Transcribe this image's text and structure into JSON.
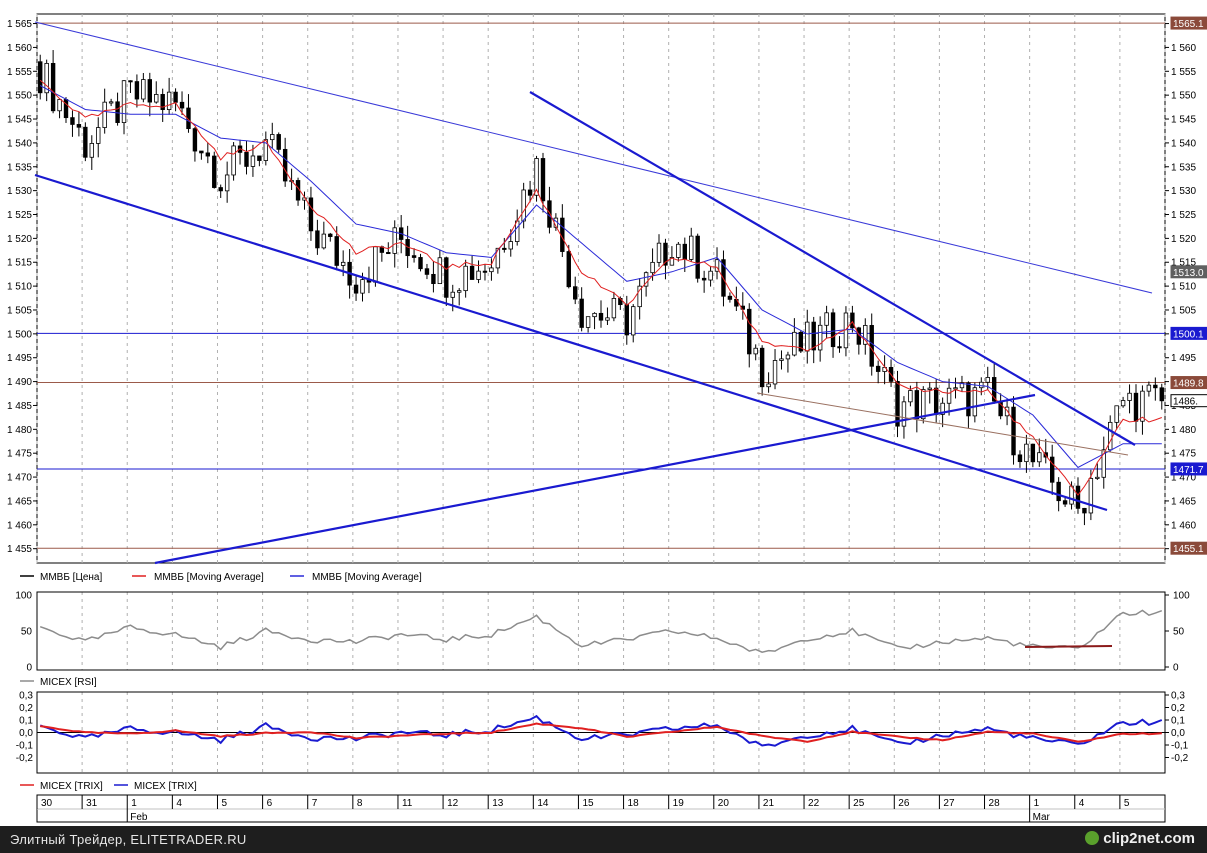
{
  "colors": {
    "candle": "#000000",
    "ma_fast": "#e02020",
    "ma_slow": "#2a2ad8",
    "trendline": "#1a1ad0",
    "channel_top": "#3a3ad8",
    "level_brown": "#9b5a4a",
    "level_blue": "#1a1ad0",
    "rsi": "#8c8c8c",
    "rsi_marker": "#8b1a1a",
    "trix_red": "#e02020",
    "trix_blue": "#1a1ad0",
    "grid": "#b0b0b0"
  },
  "price_axis": {
    "ticks": [
      "1 455",
      "1 460",
      "1 465",
      "1 470",
      "1 475",
      "1 480",
      "1 485",
      "1 490",
      "1 495",
      "1 500",
      "1 505",
      "1 510",
      "1 515",
      "1 520",
      "1 525",
      "1 530",
      "1 535",
      "1 540",
      "1 545",
      "1 550",
      "1 555",
      "1 560",
      "1 565"
    ]
  },
  "level_tags": [
    {
      "price": 1565.1,
      "label": "1565.1",
      "style": "brown"
    },
    {
      "price": 1513.0,
      "label": "1513.0",
      "style": "gray"
    },
    {
      "price": 1500.1,
      "label": "1500.1",
      "style": "blue"
    },
    {
      "price": 1489.8,
      "label": "1489.8",
      "style": "brown"
    },
    {
      "price": 1486.0,
      "label": "1486.",
      "style": "white"
    },
    {
      "price": 1471.7,
      "label": "1471.7",
      "style": "blue"
    },
    {
      "price": 1455.1,
      "label": "1455.1",
      "style": "brown"
    }
  ],
  "legend_main": {
    "price": "ММВБ [Цена]",
    "ma1": "ММВБ [Moving Average]",
    "ma2": "ММВБ [Moving Average]"
  },
  "rsi_panel": {
    "ticks": [
      "0",
      "50",
      "100"
    ],
    "legend": "MICEX [RSI]"
  },
  "trix_panel": {
    "ticks": [
      "-0,2",
      "-0,1",
      "0,0",
      "0,1",
      "0,2",
      "0,3"
    ],
    "legend1": "MICEX [TRIX]",
    "legend2": "MICEX [TRIX]"
  },
  "date_axis": {
    "days": [
      "30",
      "31",
      "1",
      "4",
      "5",
      "6",
      "7",
      "8",
      "11",
      "12",
      "13",
      "14",
      "15",
      "18",
      "19",
      "20",
      "21",
      "22",
      "25",
      "26",
      "27",
      "28",
      "1",
      "4",
      "5"
    ],
    "months": [
      {
        "label": "Feb",
        "at_day_index": 2
      },
      {
        "label": "Mar",
        "at_day_index": 22
      }
    ]
  },
  "footer": {
    "caption": "Элитный Трейдер, ELITETRADER.RU",
    "brand": "clip2net.com"
  },
  "chart_data": {
    "type": "line",
    "title": "",
    "series": [
      {
        "name": "ММВБ [Цена]",
        "kind": "daily close (candles)",
        "points": [
          [
            "30",
            1555
          ],
          [
            "31",
            1540
          ],
          [
            "1",
            1550
          ],
          [
            "4",
            1548
          ],
          [
            "5",
            1533
          ],
          [
            "6",
            1540
          ],
          [
            "7",
            1522
          ],
          [
            "8",
            1512
          ],
          [
            "11",
            1520
          ],
          [
            "12",
            1512
          ],
          [
            "13",
            1515
          ],
          [
            "14",
            1535
          ],
          [
            "15",
            1505
          ],
          [
            "18",
            1503
          ],
          [
            "19",
            1520
          ],
          [
            "20",
            1512
          ],
          [
            "21",
            1493
          ],
          [
            "22",
            1498
          ],
          [
            "25",
            1503
          ],
          [
            "26",
            1485
          ],
          [
            "27",
            1486
          ],
          [
            "28",
            1487
          ],
          [
            "1",
            1473
          ],
          [
            "4",
            1463
          ],
          [
            "5",
            1486
          ]
        ]
      },
      {
        "name": "ММВБ [Moving Average]",
        "points": [
          [
            "30",
            1553
          ],
          [
            "31",
            1545
          ],
          [
            "1",
            1548
          ],
          [
            "4",
            1548
          ],
          [
            "5",
            1537
          ],
          [
            "6",
            1540
          ],
          [
            "7",
            1527
          ],
          [
            "8",
            1517
          ],
          [
            "11",
            1519
          ],
          [
            "12",
            1514
          ],
          [
            "13",
            1515
          ],
          [
            "14",
            1530
          ],
          [
            "15",
            1513
          ],
          [
            "18",
            1506
          ],
          [
            "19",
            1516
          ],
          [
            "20",
            1514
          ],
          [
            "21",
            1498
          ],
          [
            "22",
            1497
          ],
          [
            "25",
            1502
          ],
          [
            "26",
            1489
          ],
          [
            "27",
            1488
          ],
          [
            "28",
            1488
          ],
          [
            "1",
            1478
          ],
          [
            "4",
            1466
          ],
          [
            "5",
            1482
          ]
        ]
      },
      {
        "name": "ММВБ [Moving Average]",
        "points": [
          [
            "30",
            1552
          ],
          [
            "31",
            1547
          ],
          [
            "1",
            1546
          ],
          [
            "4",
            1546
          ],
          [
            "5",
            1541
          ],
          [
            "6",
            1540
          ],
          [
            "7",
            1532
          ],
          [
            "8",
            1523
          ],
          [
            "11",
            1521
          ],
          [
            "12",
            1517
          ],
          [
            "13",
            1516
          ],
          [
            "14",
            1527
          ],
          [
            "15",
            1519
          ],
          [
            "18",
            1511
          ],
          [
            "19",
            1513
          ],
          [
            "20",
            1516
          ],
          [
            "21",
            1505
          ],
          [
            "22",
            1500
          ],
          [
            "25",
            1501
          ],
          [
            "26",
            1494
          ],
          [
            "27",
            1490
          ],
          [
            "28",
            1489
          ],
          [
            "1",
            1483
          ],
          [
            "4",
            1472
          ],
          [
            "5",
            1477
          ]
        ]
      },
      {
        "name": "MICEX [RSI]",
        "points": [
          [
            "30",
            55
          ],
          [
            "31",
            35
          ],
          [
            "1",
            55
          ],
          [
            "4",
            45
          ],
          [
            "5",
            28
          ],
          [
            "6",
            50
          ],
          [
            "7",
            38
          ],
          [
            "8",
            35
          ],
          [
            "11",
            45
          ],
          [
            "12",
            38
          ],
          [
            "13",
            45
          ],
          [
            "14",
            70
          ],
          [
            "15",
            30
          ],
          [
            "18",
            38
          ],
          [
            "19",
            50
          ],
          [
            "20",
            40
          ],
          [
            "21",
            18
          ],
          [
            "22",
            40
          ],
          [
            "25",
            50
          ],
          [
            "26",
            25
          ],
          [
            "27",
            35
          ],
          [
            "28",
            40
          ],
          [
            "1",
            28
          ],
          [
            "4",
            25
          ],
          [
            "5",
            75
          ]
        ]
      },
      {
        "name": "MICEX [TRIX]",
        "points": [
          [
            "30",
            0.05
          ],
          [
            "31",
            -0.05
          ],
          [
            "1",
            0.03
          ],
          [
            "4",
            0.0
          ],
          [
            "5",
            -0.06
          ],
          [
            "6",
            0.05
          ],
          [
            "7",
            -0.04
          ],
          [
            "8",
            -0.05
          ],
          [
            "11",
            0.0
          ],
          [
            "12",
            -0.02
          ],
          [
            "13",
            0.02
          ],
          [
            "14",
            0.12
          ],
          [
            "15",
            -0.05
          ],
          [
            "18",
            -0.02
          ],
          [
            "19",
            0.03
          ],
          [
            "20",
            0.06
          ],
          [
            "21",
            -0.12
          ],
          [
            "22",
            -0.02
          ],
          [
            "25",
            0.03
          ],
          [
            "26",
            -0.1
          ],
          [
            "27",
            -0.02
          ],
          [
            "28",
            0.03
          ],
          [
            "1",
            -0.05
          ],
          [
            "4",
            -0.1
          ],
          [
            "5",
            0.08
          ]
        ]
      }
    ],
    "levels": [
      1565.1,
      1513.0,
      1500.1,
      1489.8,
      1471.7,
      1455.1
    ],
    "ylim": [
      1452,
      1567
    ],
    "rsi_ylim": [
      0,
      100
    ],
    "trix_ylim": [
      -0.3,
      0.3
    ],
    "grid": true
  }
}
